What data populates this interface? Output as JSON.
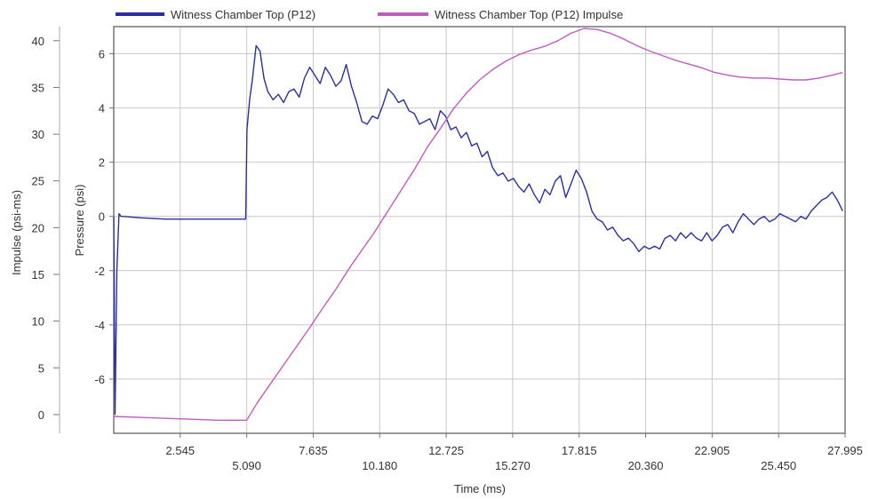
{
  "chart_data": {
    "type": "line",
    "xlabel": "Time (ms)",
    "ylabel_left": "Impulse (psi-ms)",
    "ylabel_right": "Pressure (psi)",
    "xlim": [
      0,
      27.995
    ],
    "x_ticks": [
      "2.545",
      "5.090",
      "7.635",
      "10.180",
      "12.725",
      "15.270",
      "17.815",
      "20.360",
      "22.905",
      "25.450",
      "27.995"
    ],
    "impulse_ylim": [
      -2,
      41.5
    ],
    "impulse_ticks": [
      "0",
      "5",
      "10",
      "15",
      "20",
      "25",
      "30",
      "35",
      "40"
    ],
    "pressure_ylim": [
      -8,
      7
    ],
    "pressure_ticks": [
      "-6",
      "-4",
      "-2",
      "0",
      "2",
      "4",
      "6"
    ],
    "grid": true,
    "legend_position": "top",
    "colors": {
      "pressure": "#2b2f9e",
      "impulse": "#c05bc4"
    },
    "series": [
      {
        "name": "Witness Chamber Top (P12)",
        "axis": "pressure",
        "color": "#2b2f9e",
        "x": [
          0,
          0.05,
          0.12,
          0.2,
          0.28,
          0.35,
          1.0,
          2.0,
          3.0,
          4.0,
          4.9,
          5.05,
          5.1,
          5.2,
          5.3,
          5.45,
          5.6,
          5.75,
          5.9,
          6.1,
          6.3,
          6.5,
          6.7,
          6.9,
          7.1,
          7.3,
          7.5,
          7.7,
          7.9,
          8.1,
          8.3,
          8.5,
          8.7,
          8.9,
          9.1,
          9.3,
          9.5,
          9.7,
          9.9,
          10.1,
          10.3,
          10.5,
          10.7,
          10.9,
          11.1,
          11.3,
          11.5,
          11.7,
          11.9,
          12.1,
          12.3,
          12.5,
          12.7,
          12.9,
          13.1,
          13.3,
          13.5,
          13.7,
          13.9,
          14.1,
          14.3,
          14.5,
          14.7,
          14.9,
          15.1,
          15.3,
          15.5,
          15.7,
          15.9,
          16.1,
          16.3,
          16.5,
          16.7,
          16.9,
          17.1,
          17.3,
          17.5,
          17.7,
          17.9,
          18.1,
          18.3,
          18.5,
          18.7,
          18.9,
          19.1,
          19.3,
          19.5,
          19.7,
          19.9,
          20.1,
          20.3,
          20.5,
          20.7,
          20.9,
          21.1,
          21.3,
          21.5,
          21.7,
          21.9,
          22.1,
          22.3,
          22.5,
          22.7,
          22.9,
          23.1,
          23.3,
          23.5,
          23.7,
          23.9,
          24.1,
          24.3,
          24.5,
          24.7,
          24.9,
          25.1,
          25.3,
          25.5,
          25.7,
          25.9,
          26.1,
          26.3,
          26.5,
          26.7,
          26.9,
          27.1,
          27.3,
          27.5,
          27.7,
          27.9
        ],
        "values": [
          0,
          -7.3,
          -2.0,
          0.1,
          0.0,
          0.0,
          -0.05,
          -0.1,
          -0.1,
          -0.1,
          -0.1,
          -0.1,
          3.2,
          4.3,
          5.0,
          6.3,
          6.1,
          5.1,
          4.6,
          4.3,
          4.5,
          4.2,
          4.6,
          4.7,
          4.4,
          5.1,
          5.5,
          5.2,
          4.9,
          5.5,
          5.2,
          4.8,
          5.0,
          5.6,
          4.8,
          4.2,
          3.5,
          3.4,
          3.7,
          3.6,
          4.1,
          4.7,
          4.5,
          4.2,
          4.3,
          3.9,
          3.8,
          3.4,
          3.5,
          3.6,
          3.2,
          3.9,
          3.7,
          3.2,
          3.3,
          2.9,
          3.1,
          2.6,
          2.7,
          2.2,
          2.4,
          1.8,
          1.5,
          1.6,
          1.3,
          1.4,
          1.1,
          0.9,
          1.2,
          0.8,
          0.5,
          1.0,
          0.8,
          1.3,
          1.5,
          0.7,
          1.2,
          1.7,
          1.4,
          0.9,
          0.2,
          -0.1,
          -0.2,
          -0.5,
          -0.4,
          -0.7,
          -0.9,
          -0.8,
          -1.0,
          -1.3,
          -1.1,
          -1.2,
          -1.1,
          -1.2,
          -0.8,
          -0.7,
          -0.9,
          -0.6,
          -0.8,
          -0.6,
          -0.8,
          -0.9,
          -0.6,
          -0.9,
          -0.7,
          -0.4,
          -0.3,
          -0.6,
          -0.2,
          0.1,
          -0.1,
          -0.3,
          -0.1,
          0.0,
          -0.2,
          -0.1,
          0.1,
          0.0,
          -0.1,
          -0.2,
          0.0,
          -0.1,
          0.2,
          0.4,
          0.6,
          0.7,
          0.9,
          0.6,
          0.2
        ]
      },
      {
        "name": "Witness Chamber Top (P12) Impulse",
        "axis": "impulse",
        "color": "#c05bc4",
        "x": [
          0,
          1.0,
          2.0,
          3.0,
          4.0,
          5.09,
          5.5,
          6.0,
          6.5,
          7.0,
          7.5,
          8.0,
          8.5,
          9.0,
          9.5,
          10.0,
          10.5,
          11.0,
          11.5,
          12.0,
          12.5,
          13.0,
          13.5,
          14.0,
          14.5,
          15.0,
          15.5,
          16.0,
          16.5,
          17.0,
          17.5,
          18.0,
          18.5,
          19.0,
          19.5,
          20.0,
          20.5,
          21.0,
          21.5,
          22.0,
          22.5,
          23.0,
          23.5,
          24.0,
          24.5,
          25.0,
          25.5,
          26.0,
          26.5,
          27.0,
          27.5,
          27.9
        ],
        "values": [
          -0.2,
          -0.3,
          -0.4,
          -0.5,
          -0.6,
          -0.6,
          1.3,
          3.3,
          5.3,
          7.3,
          9.3,
          11.4,
          13.4,
          15.6,
          17.6,
          19.6,
          21.8,
          24.0,
          26.2,
          28.6,
          30.6,
          32.7,
          34.4,
          35.8,
          36.9,
          37.8,
          38.5,
          39.0,
          39.4,
          40.0,
          40.8,
          41.3,
          41.2,
          40.8,
          40.2,
          39.5,
          38.9,
          38.4,
          37.9,
          37.5,
          37.1,
          36.6,
          36.3,
          36.1,
          36.0,
          36.0,
          35.9,
          35.8,
          35.8,
          36.0,
          36.3,
          36.6
        ]
      }
    ]
  }
}
